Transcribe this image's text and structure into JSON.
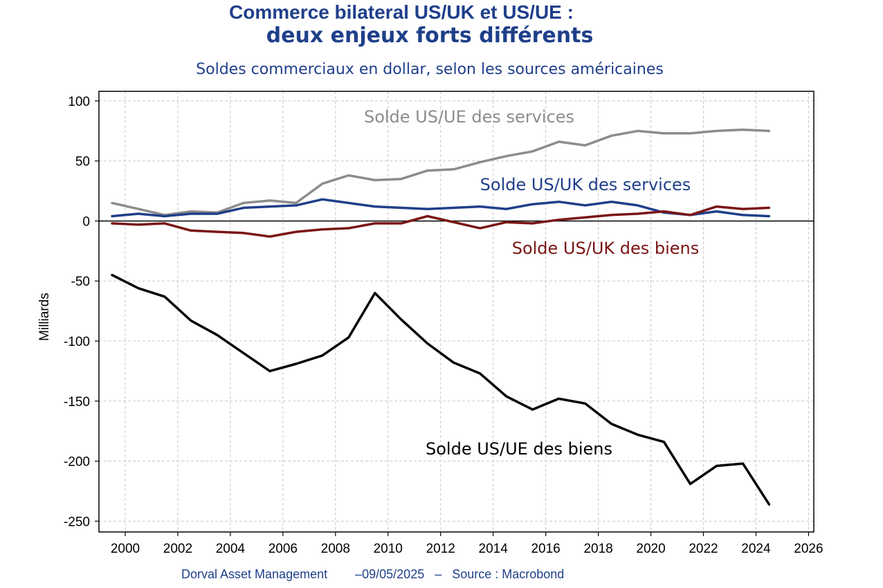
{
  "header": {
    "title_line1": "Commerce bilateral US/UK et US/UE :",
    "title_line2": "deux enjeux forts différents",
    "subtitle": "Soldes commerciaux en dollar, selon les sources américaines"
  },
  "footer": {
    "text": "Dorval Asset Management        –09/05/2025   –   Source : Macrobond"
  },
  "chart_data": {
    "type": "line",
    "title": "Commerce bilateral US/UK et US/UE : deux enjeux forts différents",
    "subtitle": "Soldes commerciaux en dollar, selon les sources américaines",
    "xlabel": "",
    "ylabel": "Milliards",
    "xlim": [
      1999.5,
      2026
    ],
    "ylim": [
      -255,
      108
    ],
    "x_ticks": [
      "2000",
      "2002",
      "2004",
      "2006",
      "2008",
      "2010",
      "2012",
      "2014",
      "2016",
      "2018",
      "2020",
      "2022",
      "2024",
      "2026"
    ],
    "y_ticks": [
      "100",
      "50",
      "0",
      "-50",
      "-100",
      "-150",
      "-200",
      "-250"
    ],
    "grid": true,
    "zero_line": true,
    "x": [
      1999.5,
      2000.5,
      2001.5,
      2002.5,
      2003.5,
      2004.5,
      2005.5,
      2006.5,
      2007.5,
      2008.5,
      2009.5,
      2010.5,
      2011.5,
      2012.5,
      2013.5,
      2014.5,
      2015.5,
      2016.5,
      2017.5,
      2018.5,
      2019.5,
      2020.5,
      2021.5,
      2022.5,
      2023.5,
      2024.5
    ],
    "series": [
      {
        "name": "Solde US/UE des services",
        "color": "#8c8c8c",
        "values": [
          15,
          10,
          5,
          8,
          7,
          15,
          17,
          15,
          31,
          38,
          34,
          35,
          42,
          43,
          49,
          54,
          58,
          66,
          63,
          71,
          75,
          73,
          73,
          75,
          76,
          75
        ]
      },
      {
        "name": "Solde US/UK des services",
        "color": "#1f3f8a",
        "values": [
          4,
          6,
          4,
          6,
          6,
          11,
          12,
          13,
          18,
          15,
          12,
          11,
          10,
          11,
          12,
          10,
          14,
          16,
          13,
          16,
          13,
          7,
          5,
          8,
          5,
          4
        ]
      },
      {
        "name": "Solde US/UK des biens",
        "color": "#7a1515",
        "values": [
          -2,
          -3,
          -2,
          -8,
          -9,
          -10,
          -13,
          -9,
          -7,
          -6,
          -2,
          -2,
          4,
          -1,
          -6,
          -1,
          -2,
          1,
          3,
          5,
          6,
          8,
          5,
          12,
          10,
          11
        ]
      },
      {
        "name": "Solde US/UE des biens",
        "color": "#000000",
        "values": [
          -45,
          -56,
          -63,
          -83,
          -95,
          -110,
          -125,
          -119,
          -112,
          -97,
          -60,
          -82,
          -102,
          -118,
          -127,
          -146,
          -157,
          -148,
          -152,
          -169,
          -178,
          -184,
          -219,
          -204,
          -202,
          -236
        ]
      }
    ]
  }
}
